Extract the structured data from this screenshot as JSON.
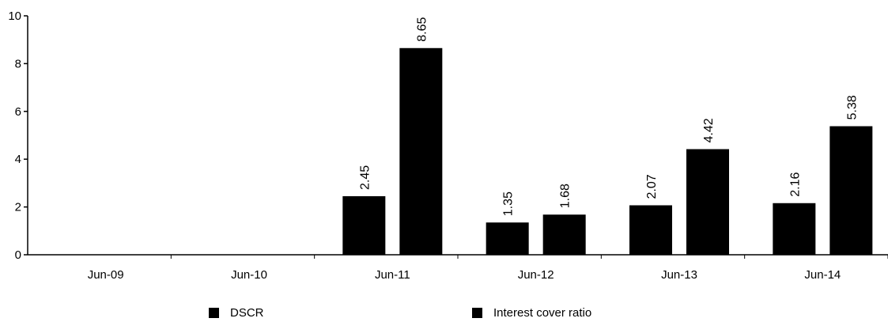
{
  "chart_data": {
    "type": "bar",
    "categories": [
      "Jun-09",
      "Jun-10",
      "Jun-11",
      "Jun-12",
      "Jun-13",
      "Jun-14"
    ],
    "series": [
      {
        "name": "DSCR",
        "values": [
          0,
          0,
          2.45,
          1.35,
          2.07,
          2.16
        ],
        "color": "#000000"
      },
      {
        "name": "Interest cover ratio",
        "values": [
          0,
          0,
          8.65,
          1.68,
          4.42,
          5.38
        ],
        "color": "#000000"
      }
    ],
    "ylim": [
      0,
      10
    ],
    "yticks": [
      0,
      2,
      4,
      6,
      8,
      10
    ],
    "legend_position": "bottom",
    "grid": false
  }
}
